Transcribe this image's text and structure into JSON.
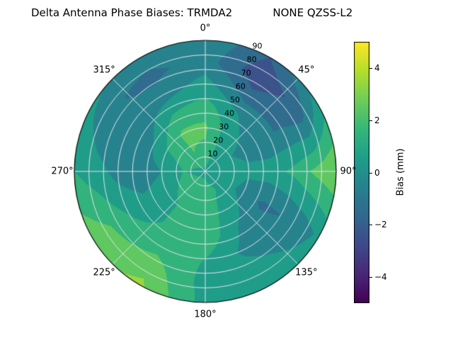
{
  "figure": {
    "background": "#ffffff"
  },
  "chart_data": {
    "type": "heatmap",
    "subtype": "polar_filled_contour",
    "title": "Delta Antenna Phase Biases: TRMDA2            NONE QZSS-L2",
    "azimuth_tick_degs": [
      0,
      45,
      90,
      135,
      180,
      225,
      270,
      315
    ],
    "azimuth_tick_labels": [
      "0°",
      "45°",
      "90°",
      "135°",
      "180°",
      "225°",
      "270°",
      "315°"
    ],
    "radial_tick_labels": [
      "10",
      "20",
      "30",
      "40",
      "50",
      "60",
      "70",
      "80",
      "90"
    ],
    "radial_label_angle_deg": 22.5,
    "radial_range_deg": [
      0,
      90
    ],
    "radial_grid_deg": [
      10,
      20,
      30,
      40,
      50,
      60,
      70,
      80
    ],
    "azimuth_grid_step_deg": 45,
    "grid_color": "#e6e3f0",
    "outline_color": "#000000",
    "contour_band_mm": 1.0,
    "colorbar": {
      "label": "Bias (mm)",
      "ticks": [
        4,
        2,
        0,
        -2,
        -4
      ],
      "tick_labels": [
        "4",
        "2",
        "0",
        "−2",
        "−4"
      ],
      "range": [
        -5,
        5
      ],
      "colormap": "viridis"
    },
    "values_grid": {
      "units": "mm",
      "azimuth_deg": [
        0,
        30,
        60,
        90,
        120,
        150,
        180,
        210,
        240,
        270,
        300,
        330
      ],
      "zenith_deg": [
        0,
        15,
        30,
        45,
        60,
        75,
        90
      ],
      "bias_mm": [
        [
          0.8,
          0.8,
          0.8,
          0.8,
          0.8,
          0.8,
          0.8,
          0.8,
          0.8,
          0.8,
          0.8,
          0.8
        ],
        [
          1.8,
          0.8,
          0.2,
          0.5,
          0.5,
          1.0,
          1.3,
          1.5,
          1.3,
          1.0,
          1.4,
          2.0
        ],
        [
          2.2,
          0.5,
          -0.3,
          0.2,
          -0.4,
          0.6,
          1.6,
          1.2,
          0.6,
          0.0,
          1.0,
          2.2
        ],
        [
          1.4,
          0.0,
          -1.0,
          0.6,
          -1.2,
          0.0,
          1.8,
          1.3,
          0.4,
          -0.8,
          -0.4,
          1.0
        ],
        [
          0.4,
          -1.6,
          -1.0,
          1.2,
          -1.0,
          -0.4,
          1.0,
          1.6,
          1.0,
          -0.4,
          -1.0,
          -0.6
        ],
        [
          -0.5,
          -2.8,
          -1.4,
          2.2,
          -0.6,
          0.4,
          0.6,
          2.6,
          2.0,
          0.4,
          -0.8,
          -1.3
        ],
        [
          0.0,
          -2.0,
          0.6,
          3.0,
          0.2,
          1.0,
          0.6,
          3.2,
          2.6,
          1.0,
          0.2,
          -0.4
        ]
      ]
    }
  }
}
